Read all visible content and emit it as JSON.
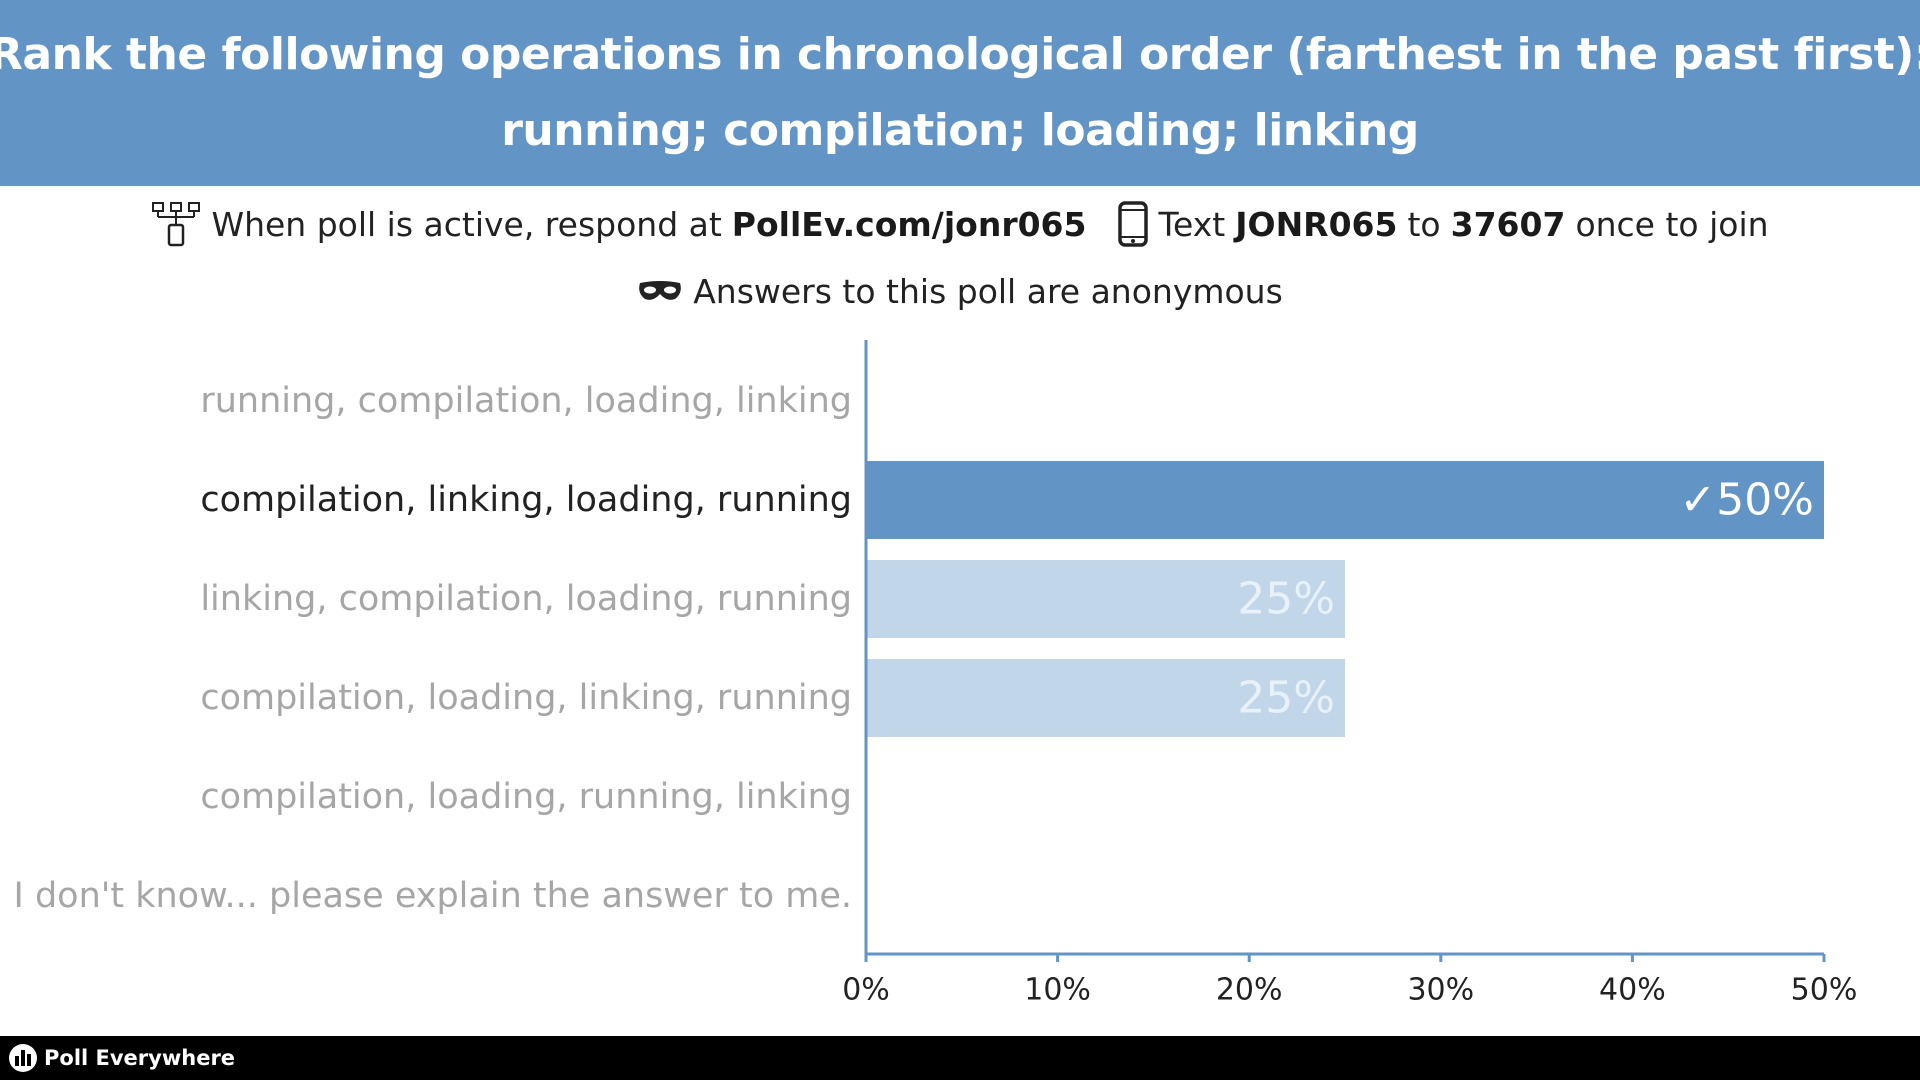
{
  "header": {
    "line1": "Rank the following operations in chronological order (farthest in the past first):",
    "line2": "running; compilation; loading; linking"
  },
  "instructions": {
    "web_icon": "poll-web-icon",
    "web_prefix": "When poll is active, respond at",
    "web_url": "PollEv.com/jonr065",
    "phone_icon": "phone-icon",
    "text_prefix": "Text",
    "text_code": "JONR065",
    "text_to": "to",
    "text_number": "37607",
    "text_suffix": "once to join",
    "anon_icon": "mask-icon",
    "anonymous": "Answers to this poll are anonymous"
  },
  "chart_data": {
    "type": "bar",
    "orientation": "horizontal",
    "categories": [
      "running, compilation, loading, linking",
      "compilation, linking, loading, running",
      "linking, compilation, loading, running",
      "compilation, loading, linking, running",
      "compilation, loading, running, linking",
      "I don't know... please explain the answer to me."
    ],
    "values": [
      0,
      50,
      25,
      25,
      0,
      0
    ],
    "value_labels": [
      "",
      "✓50%",
      "25%",
      "25%",
      "",
      ""
    ],
    "correct_index": 1,
    "xlim": [
      0,
      50
    ],
    "x_ticks": [
      "0%",
      "10%",
      "20%",
      "30%",
      "40%",
      "50%"
    ],
    "grid": false,
    "colors": {
      "correct_bar": "#6394c6",
      "other_bar": "#c2d6ea",
      "correct_label": "#222222",
      "other_label": "#a6a6a6",
      "correct_value_text": "#ffffff",
      "other_value_text": "#e8f0f8",
      "axis": "#6394c6"
    }
  },
  "footer": {
    "logo_icon": "poll-everywhere-logo-icon",
    "brand": "Poll Everywhere"
  }
}
